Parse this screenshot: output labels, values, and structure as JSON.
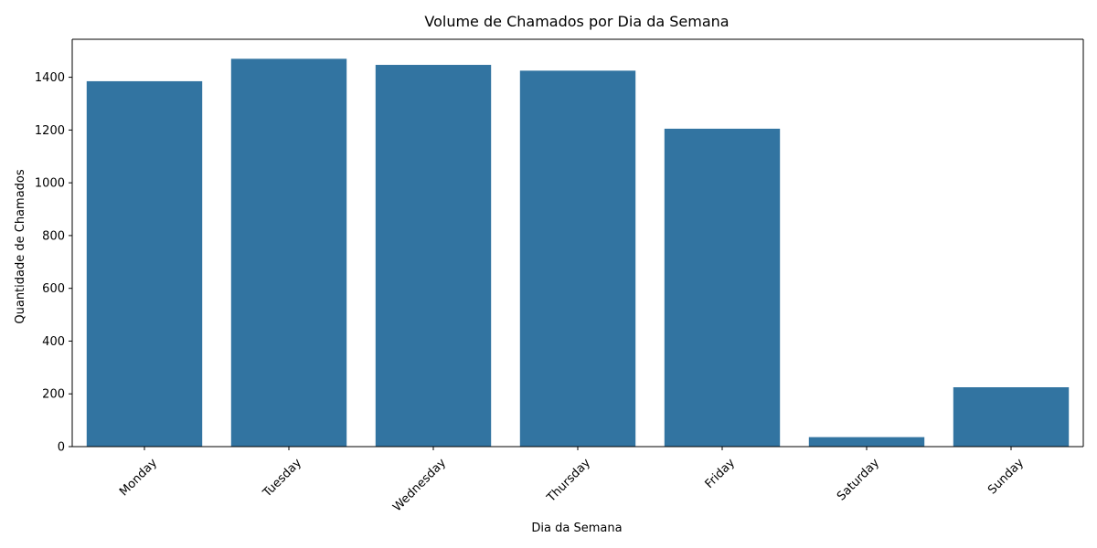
{
  "chart_data": {
    "type": "bar",
    "title": "Volume de Chamados por Dia da Semana",
    "xlabel": "Dia da Semana",
    "ylabel": "Quantidade de Chamados",
    "categories": [
      "Monday",
      "Tuesday",
      "Wednesday",
      "Thursday",
      "Friday",
      "Saturday",
      "Sunday"
    ],
    "values": [
      1385,
      1470,
      1447,
      1425,
      1205,
      36,
      225
    ],
    "ylim": [
      0,
      1544
    ],
    "yticks": [
      0,
      200,
      400,
      600,
      800,
      1000,
      1200,
      1400
    ],
    "bar_color": "#3274a1",
    "grid": false,
    "legend": "none"
  }
}
